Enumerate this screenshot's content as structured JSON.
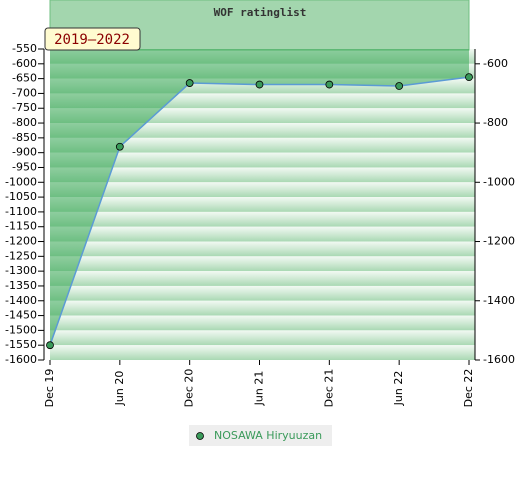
{
  "chart_data": {
    "type": "area",
    "title": "WOF ratinglist",
    "annotation": "2019–2022",
    "categories": [
      "Dec 19",
      "Jun 20",
      "Dec 20",
      "Jun 21",
      "Dec 21",
      "Jun 22",
      "Dec 22"
    ],
    "series": [
      {
        "name": "NOSAWA Hiryuuzan",
        "color": "#5b9bd5",
        "marker_color": "#3a9a5a",
        "values": [
          -1550,
          -880,
          -665,
          -670,
          -670,
          -675,
          -645
        ]
      }
    ],
    "ylim": [
      -1600,
      -550
    ],
    "yticks": [
      -550,
      -600,
      -650,
      -700,
      -750,
      -800,
      -850,
      -900,
      -950,
      -1000,
      -1050,
      -1100,
      -1150,
      -1200,
      -1250,
      -1300,
      -1350,
      -1400,
      -1450,
      -1500,
      -1550,
      -1600
    ],
    "y2lim": [
      -1600,
      -550
    ],
    "y2ticks": [
      -600,
      -800,
      -1000,
      -1200,
      -1400,
      -1600
    ],
    "grid": true
  }
}
